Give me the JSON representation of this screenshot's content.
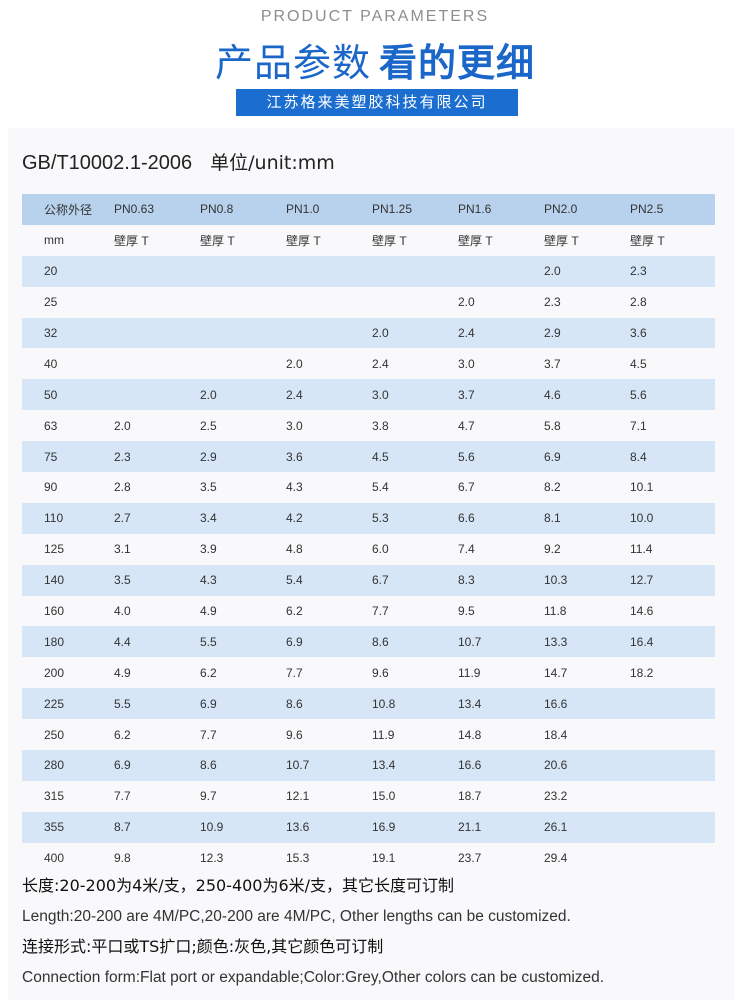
{
  "header": {
    "en_title": "PRODUCT PARAMETERS",
    "cn_title": "产品参数",
    "cn_title_bold": "看的更细",
    "company": "江苏格来美塑胶科技有限公司"
  },
  "standard": {
    "code": "GB/T10002.1-2006",
    "unit": "单位/unit:mm"
  },
  "table": {
    "headers": [
      "公称外径",
      "PN0.63",
      "PN0.8",
      "PN1.0",
      "PN1.25",
      "PN1.6",
      "PN2.0",
      "PN2.5"
    ],
    "subheaders": [
      "mm",
      "壁厚 T",
      "壁厚 T",
      "壁厚 T",
      "壁厚 T",
      "壁厚 T",
      "壁厚 T",
      "壁厚 T"
    ],
    "rows": [
      [
        "20",
        "",
        "",
        "",
        "",
        "",
        "2.0",
        "2.3"
      ],
      [
        "25",
        "",
        "",
        "",
        "",
        "2.0",
        "2.3",
        "2.8"
      ],
      [
        "32",
        "",
        "",
        "",
        "2.0",
        "2.4",
        "2.9",
        "3.6"
      ],
      [
        "40",
        "",
        "",
        "2.0",
        "2.4",
        "3.0",
        "3.7",
        "4.5"
      ],
      [
        "50",
        "",
        "2.0",
        "2.4",
        "3.0",
        "3.7",
        "4.6",
        "5.6"
      ],
      [
        "63",
        "2.0",
        "2.5",
        "3.0",
        "3.8",
        "4.7",
        "5.8",
        "7.1"
      ],
      [
        "75",
        "2.3",
        "2.9",
        "3.6",
        "4.5",
        "5.6",
        "6.9",
        "8.4"
      ],
      [
        "90",
        "2.8",
        "3.5",
        "4.3",
        "5.4",
        "6.7",
        "8.2",
        "10.1"
      ],
      [
        "110",
        "2.7",
        "3.4",
        "4.2",
        "5.3",
        "6.6",
        "8.1",
        "10.0"
      ],
      [
        "125",
        "3.1",
        "3.9",
        "4.8",
        "6.0",
        "7.4",
        "9.2",
        "11.4"
      ],
      [
        "140",
        "3.5",
        "4.3",
        "5.4",
        "6.7",
        "8.3",
        "10.3",
        "12.7"
      ],
      [
        "160",
        "4.0",
        "4.9",
        "6.2",
        "7.7",
        "9.5",
        "11.8",
        "14.6"
      ],
      [
        "180",
        "4.4",
        "5.5",
        "6.9",
        "8.6",
        "10.7",
        "13.3",
        "16.4"
      ],
      [
        "200",
        "4.9",
        "6.2",
        "7.7",
        "9.6",
        "11.9",
        "14.7",
        "18.2"
      ],
      [
        "225",
        "5.5",
        "6.9",
        "8.6",
        "10.8",
        "13.4",
        "16.6",
        ""
      ],
      [
        "250",
        "6.2",
        "7.7",
        "9.6",
        "11.9",
        "14.8",
        "18.4",
        ""
      ],
      [
        "280",
        "6.9",
        "8.6",
        "10.7",
        "13.4",
        "16.6",
        "20.6",
        ""
      ],
      [
        "315",
        "7.7",
        "9.7",
        "12.1",
        "15.0",
        "18.7",
        "23.2",
        ""
      ],
      [
        "355",
        "8.7",
        "10.9",
        "13.6",
        "16.9",
        "21.1",
        "26.1",
        ""
      ],
      [
        "400",
        "9.8",
        "12.3",
        "15.3",
        "19.1",
        "23.7",
        "29.4",
        ""
      ]
    ]
  },
  "notes": {
    "length_cn": "长度:20-200为4米/支，250-400为6米/支，其它长度可订制",
    "length_en": "Length:20-200 are 4M/PC,20-200 are 4M/PC, Other lengths can be customized.",
    "connection_cn": "连接形式:平口或TS扩口;颜色:灰色,其它颜色可订制",
    "connection_en": "Connection form:Flat port or expandable;Color:Grey,Other colors can be customized."
  }
}
